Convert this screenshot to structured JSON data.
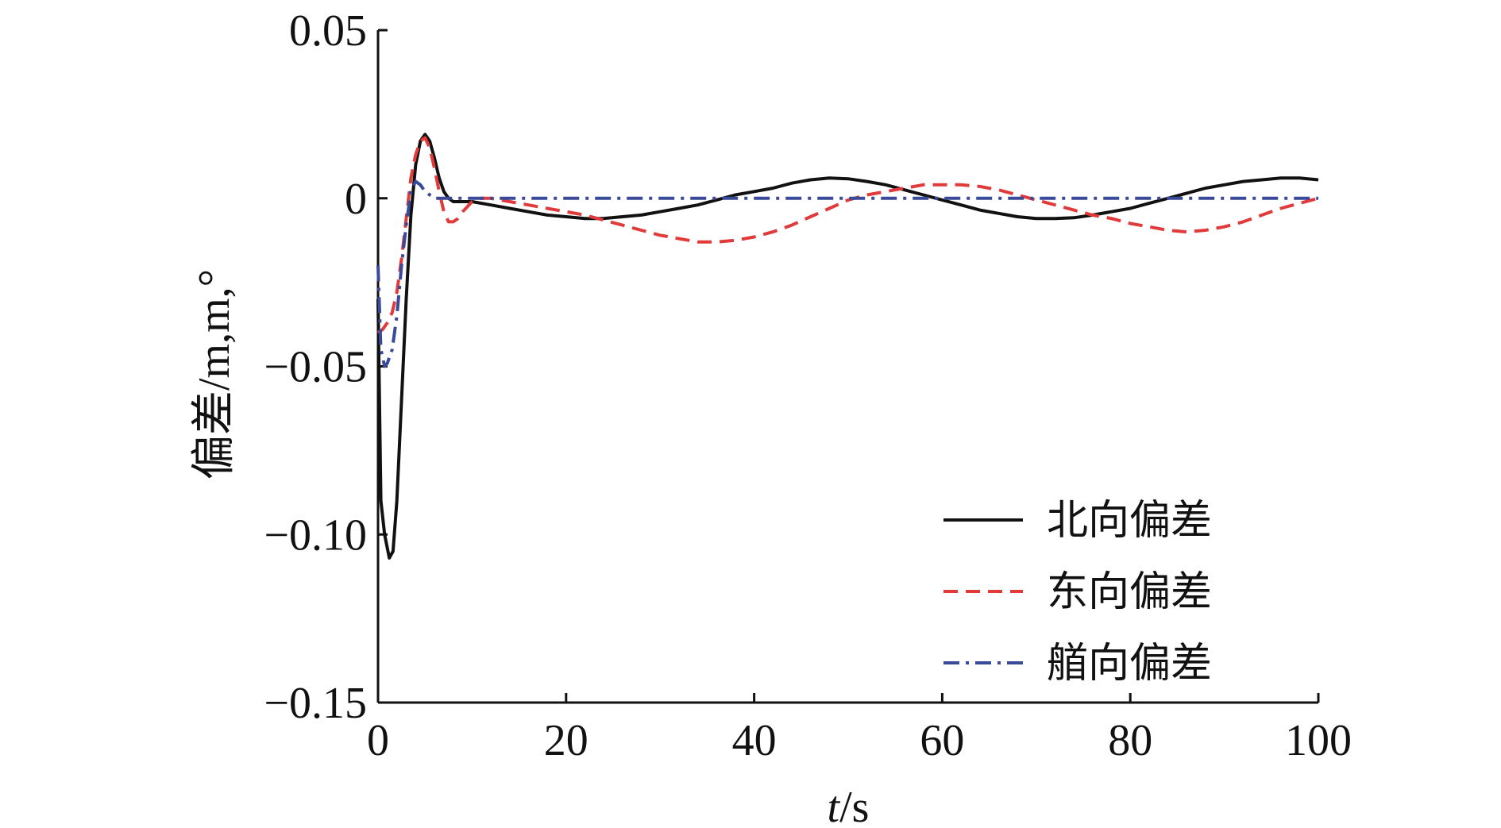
{
  "chart_data": {
    "type": "line",
    "xlabel": "t/s",
    "ylabel": "偏差/m,m,°",
    "xlim": [
      0,
      100
    ],
    "ylim": [
      -0.15,
      0.05
    ],
    "x_ticks": [
      0,
      20,
      40,
      60,
      80,
      100
    ],
    "y_ticks": [
      0.05,
      0,
      -0.05,
      -0.1,
      -0.15
    ],
    "x_tick_labels": [
      "0",
      "20",
      "40",
      "60",
      "80",
      "100"
    ],
    "y_tick_labels": [
      "0.05",
      "0",
      "−0.05",
      "−0.10",
      "−0.15"
    ],
    "grid": false,
    "legend_position": "bottom-right",
    "series": [
      {
        "name": "北向偏差",
        "color": "#111111",
        "style": "solid",
        "x": [
          0,
          0.3,
          0.7,
          1.2,
          1.6,
          2.0,
          2.5,
          3.0,
          3.5,
          4.0,
          4.5,
          5.0,
          5.5,
          6.0,
          6.5,
          7.0,
          7.5,
          8.0,
          9.0,
          10,
          12,
          14,
          16,
          18,
          20,
          22,
          24,
          26,
          28,
          30,
          32,
          34,
          36,
          38,
          40,
          42,
          44,
          46,
          48,
          50,
          52,
          54,
          56,
          58,
          60,
          62,
          64,
          66,
          68,
          70,
          72,
          74,
          76,
          78,
          80,
          82,
          84,
          86,
          88,
          90,
          92,
          94,
          96,
          98,
          100
        ],
        "y": [
          -0.03,
          -0.09,
          -0.1,
          -0.107,
          -0.105,
          -0.09,
          -0.06,
          -0.03,
          -0.005,
          0.01,
          0.017,
          0.019,
          0.017,
          0.012,
          0.006,
          0.002,
          0.0,
          -0.001,
          -0.001,
          -0.001,
          -0.002,
          -0.003,
          -0.004,
          -0.005,
          -0.0055,
          -0.006,
          -0.006,
          -0.0055,
          -0.005,
          -0.004,
          -0.003,
          -0.002,
          -0.0005,
          0.001,
          0.002,
          0.003,
          0.0045,
          0.0055,
          0.006,
          0.0058,
          0.005,
          0.004,
          0.0025,
          0.001,
          -0.0005,
          -0.002,
          -0.0035,
          -0.0045,
          -0.0055,
          -0.006,
          -0.006,
          -0.0058,
          -0.005,
          -0.004,
          -0.003,
          -0.0015,
          0.0,
          0.0015,
          0.003,
          0.004,
          0.005,
          0.0055,
          0.006,
          0.006,
          0.0055
        ]
      },
      {
        "name": "东向偏差",
        "color": "#e03a3a",
        "style": "dashed",
        "x": [
          0,
          0.5,
          1.0,
          1.5,
          2.0,
          2.5,
          3.0,
          3.5,
          4.0,
          4.5,
          5.0,
          5.5,
          6.0,
          6.5,
          7.0,
          7.5,
          8.0,
          8.5,
          9.0,
          10,
          11,
          12,
          13,
          14,
          16,
          18,
          20,
          22,
          24,
          26,
          28,
          30,
          32,
          34,
          36,
          38,
          40,
          42,
          44,
          46,
          48,
          50,
          52,
          54,
          56,
          58,
          60,
          62,
          64,
          66,
          68,
          70,
          72,
          74,
          76,
          78,
          80,
          82,
          84,
          86,
          88,
          90,
          92,
          94,
          96,
          98,
          100
        ],
        "y": [
          -0.04,
          -0.039,
          -0.037,
          -0.034,
          -0.028,
          -0.018,
          -0.006,
          0.006,
          0.013,
          0.017,
          0.018,
          0.015,
          0.009,
          0.002,
          -0.004,
          -0.007,
          -0.007,
          -0.006,
          -0.004,
          -0.001,
          0.0,
          0.0,
          -0.0005,
          -0.001,
          -0.002,
          -0.003,
          -0.004,
          -0.005,
          -0.0065,
          -0.008,
          -0.0095,
          -0.011,
          -0.012,
          -0.013,
          -0.013,
          -0.0125,
          -0.0115,
          -0.01,
          -0.008,
          -0.0055,
          -0.003,
          -0.0005,
          0.001,
          0.002,
          0.003,
          0.004,
          0.004,
          0.004,
          0.0035,
          0.0025,
          0.001,
          -0.0005,
          -0.002,
          -0.0035,
          -0.005,
          -0.006,
          -0.0075,
          -0.0085,
          -0.0095,
          -0.01,
          -0.0095,
          -0.0085,
          -0.007,
          -0.005,
          -0.003,
          -0.0015,
          0.0
        ]
      },
      {
        "name": "艏向偏差",
        "color": "#3a4a9a",
        "style": "dashdot",
        "x": [
          0,
          0.3,
          0.7,
          1.0,
          1.5,
          2.0,
          2.5,
          3.0,
          3.5,
          4.0,
          4.5,
          5.0,
          5.5,
          6.0,
          7.0,
          8.0,
          9.0,
          10,
          15,
          20,
          30,
          40,
          50,
          60,
          70,
          80,
          90,
          100
        ],
        "y": [
          -0.02,
          -0.045,
          -0.05,
          -0.049,
          -0.045,
          -0.035,
          -0.02,
          -0.008,
          0.002,
          0.005,
          0.004,
          0.002,
          0.001,
          0.0,
          0.0,
          0.0,
          0.0,
          0.0,
          0.0,
          0.0,
          0.0,
          0.0,
          0.0,
          0.0,
          0.0,
          0.0,
          0.0,
          0.0
        ]
      }
    ]
  }
}
